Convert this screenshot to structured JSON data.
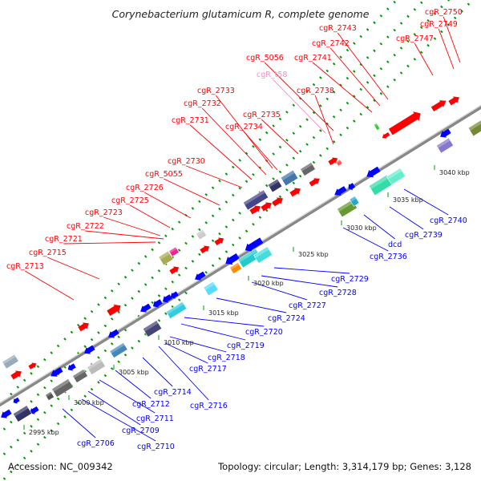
{
  "title": "Corynebacterium glutamicum R, complete genome",
  "accession": "Accession: NC_009342",
  "summary": "Topology: circular; Length: 3,314,179 bp; Genes: 3,128",
  "colors": {
    "forward_gene": "#ff0000",
    "reverse_gene": "#0000ff",
    "rna_label": "#ff88cc",
    "backbone": "#888888",
    "dots": "#009900"
  },
  "scale_marks": [
    "2995 kbp",
    "3000 kbp",
    "3005 kbp",
    "3010 kbp",
    "3015 kbp",
    "3020 kbp",
    "3025 kbp",
    "3030 kbp",
    "3035 kbp",
    "3040 kbp"
  ],
  "top_labels": [
    "cgR_2750",
    "cgR_2749",
    "cgR_2747",
    "cgR_2743",
    "cgR_2742",
    "cgR_2741",
    "cgR_5056",
    "cgR_t58",
    "cgR_2738",
    "cgR_2733",
    "cgR_2732",
    "cgR_2735",
    "cgR_2731",
    "cgR_2734",
    "cgR_2730",
    "cgR_5055",
    "cgR_2726",
    "cgR_2725",
    "cgR_2723",
    "cgR_2722",
    "cgR_2721",
    "cgR_2715",
    "cgR_2713"
  ],
  "bottom_labels": [
    "cgR_2740",
    "cgR_2739",
    "dcd",
    "cgR_2736",
    "cgR_2729",
    "cgR_2728",
    "cgR_2727",
    "cgR_2724",
    "cgR_2720",
    "cgR_2719",
    "cgR_2718",
    "cgR_2717",
    "cgR_2714",
    "cgR_2716",
    "cgR_2712",
    "cgR_2711",
    "cgR_2709",
    "cgR_2710",
    "cgR_2706"
  ]
}
